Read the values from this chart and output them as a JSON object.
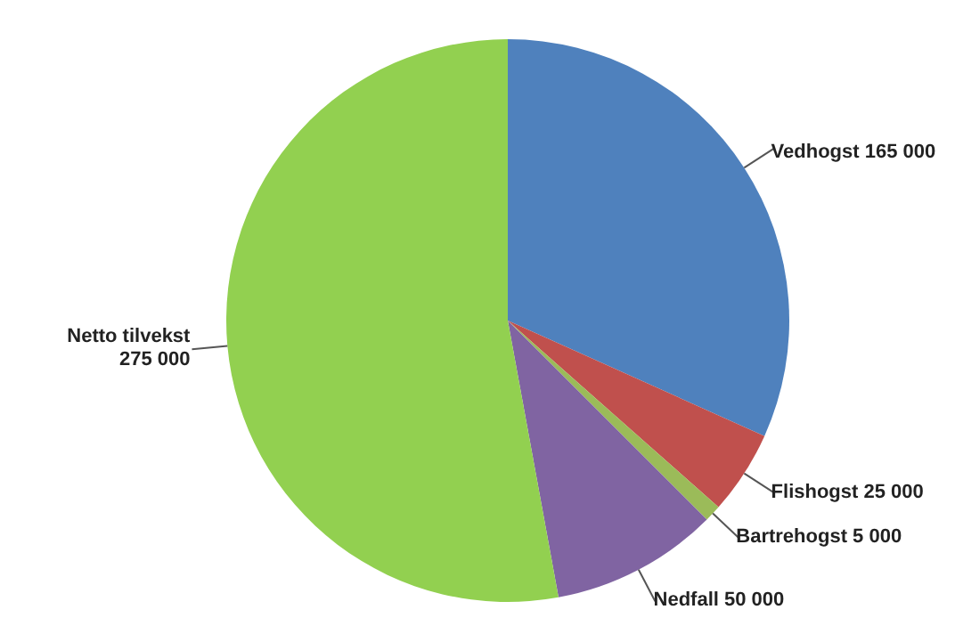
{
  "chart_data": {
    "type": "pie",
    "categories": [
      "Vedhogst",
      "Flishogst",
      "Bartrehogst",
      "Nedfall",
      "Netto tilvekst"
    ],
    "values": [
      165000,
      25000,
      5000,
      50000,
      275000
    ],
    "value_labels": [
      "165 000",
      "25 000",
      "5 000",
      "50 000",
      "275 000"
    ],
    "colors": [
      "#4f81bd",
      "#c0504d",
      "#9bbb59",
      "#8064a2",
      "#92d050"
    ],
    "legend": false
  }
}
